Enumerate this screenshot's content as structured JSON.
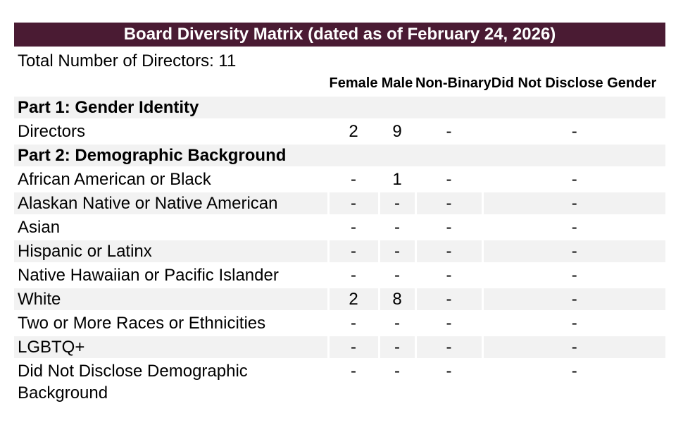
{
  "header": {
    "title": "Board Diversity Matrix (dated as of February 24, 2026)"
  },
  "summary": {
    "total_directors_label": "Total Number of Directors: 11"
  },
  "table": {
    "columns": [
      "Female",
      "Male",
      "Non-Binary",
      "Did Not Disclose Gender"
    ],
    "rows": [
      {
        "type": "section",
        "label": "Part 1: Gender Identity"
      },
      {
        "type": "data",
        "label": "Directors",
        "values": [
          "2",
          "9",
          "-",
          "-"
        ]
      },
      {
        "type": "section",
        "label": "Part 2: Demographic Background"
      },
      {
        "type": "data",
        "label": "African American or Black",
        "values": [
          "-",
          "1",
          "-",
          "-"
        ]
      },
      {
        "type": "data",
        "label": "Alaskan Native or Native American",
        "values": [
          "-",
          "-",
          "-",
          "-"
        ]
      },
      {
        "type": "data",
        "label": "Asian",
        "values": [
          "-",
          "-",
          "-",
          "-"
        ]
      },
      {
        "type": "data",
        "label": "Hispanic or Latinx",
        "values": [
          "-",
          "-",
          "-",
          "-"
        ]
      },
      {
        "type": "data",
        "label": "Native Hawaiian or Pacific Islander",
        "values": [
          "-",
          "-",
          "-",
          "-"
        ]
      },
      {
        "type": "data",
        "label": "White",
        "values": [
          "2",
          "8",
          "-",
          "-"
        ]
      },
      {
        "type": "data",
        "label": "Two or More Races or Ethnicities",
        "values": [
          "-",
          "-",
          "-",
          "-"
        ]
      },
      {
        "type": "data",
        "label": "LGBTQ+",
        "values": [
          "-",
          "-",
          "-",
          "-"
        ]
      },
      {
        "type": "data",
        "label": "Did Not Disclose Demographic Background",
        "values": [
          "-",
          "-",
          "-",
          "-"
        ]
      }
    ]
  },
  "colors": {
    "title_bar_bg": "#4a1b33",
    "title_text": "#ffffff",
    "row_stripe": "#f2f2f2",
    "body_text": "#000000"
  }
}
